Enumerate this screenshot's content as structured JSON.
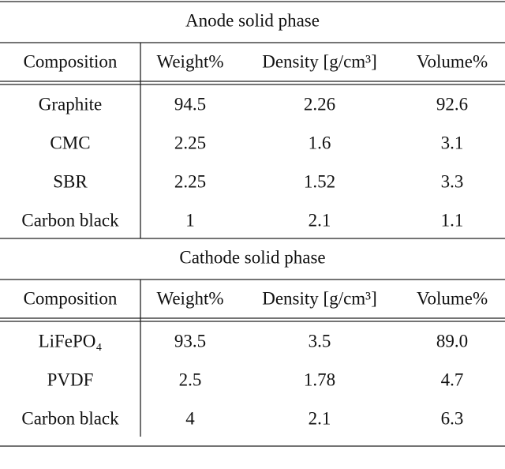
{
  "sections": [
    {
      "title": "Anode solid phase",
      "header": [
        "Composition",
        "Weight%",
        "Density [g/cm³]",
        "Volume%"
      ],
      "rows": [
        [
          "Graphite",
          "94.5",
          "2.26",
          "92.6"
        ],
        [
          "CMC",
          "2.25",
          "1.6",
          "3.1"
        ],
        [
          "SBR",
          "2.25",
          "1.52",
          "3.3"
        ],
        [
          "Carbon black",
          "1",
          "2.1",
          "1.1"
        ]
      ]
    },
    {
      "title": "Cathode solid phase",
      "header": [
        "Composition",
        "Weight%",
        "Density [g/cm³]",
        "Volume%"
      ],
      "rows": [
        [
          "LiFePO₄",
          "93.5",
          "3.5",
          "89.0"
        ],
        [
          "PVDF",
          "2.5",
          "1.78",
          "4.7"
        ],
        [
          "Carbon black",
          "4",
          "2.1",
          "6.3"
        ]
      ]
    }
  ]
}
